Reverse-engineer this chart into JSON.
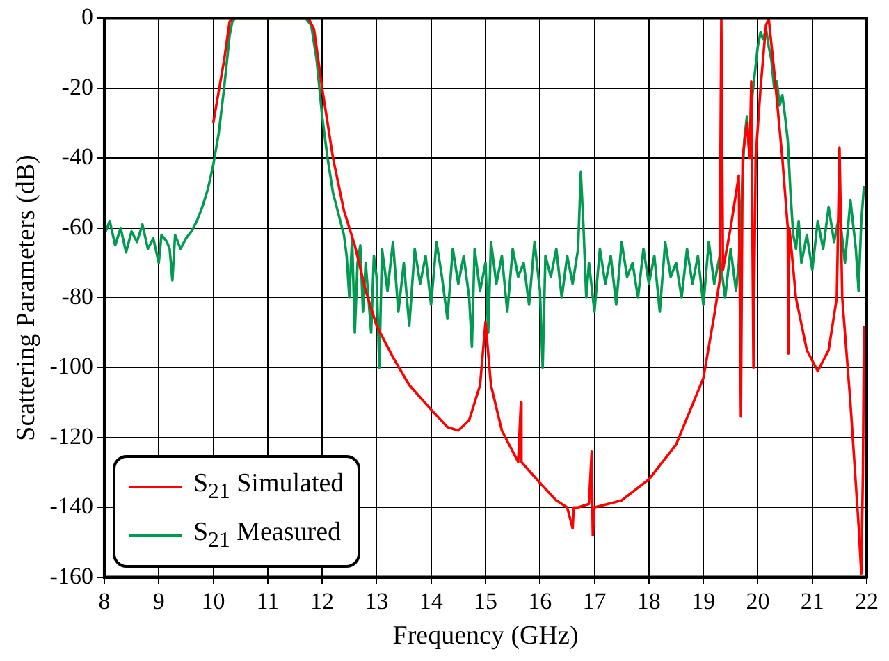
{
  "chart_data": {
    "type": "line",
    "xlabel": "Frequency (GHz)",
    "ylabel": "Scattering Parameters (dB)",
    "xlim": [
      8,
      22
    ],
    "xticks": [
      8,
      9,
      10,
      11,
      12,
      13,
      14,
      15,
      16,
      17,
      18,
      19,
      20,
      21,
      22
    ],
    "ylim": [
      -160,
      0
    ],
    "yticks": [
      -160,
      -140,
      -120,
      -100,
      -80,
      -60,
      -40,
      -20,
      0
    ],
    "grid": true,
    "legend": "bottom left",
    "marker": "none",
    "line_style": "solid",
    "series": [
      {
        "name": "S$_{21}$ Simulated",
        "color": "#ff0000",
        "x": [
          10.0,
          10.2,
          10.3,
          10.35,
          11.75,
          11.85,
          12.0,
          12.2,
          12.4,
          12.6,
          12.8,
          13.0,
          13.3,
          13.6,
          14.0,
          14.3,
          14.5,
          14.7,
          14.9,
          15.0,
          15.1,
          15.3,
          15.6,
          15.65,
          15.66,
          16.0,
          16.3,
          16.5,
          16.6,
          16.62,
          16.7,
          16.9,
          16.95,
          16.97,
          17.0,
          17.5,
          18.0,
          18.5,
          19.0,
          19.2,
          19.3,
          19.33,
          19.36,
          19.5,
          19.65,
          19.69,
          19.72,
          19.8,
          19.85,
          19.88,
          19.92,
          19.96,
          20.05,
          20.15,
          20.2,
          20.3,
          20.45,
          20.55,
          20.56,
          20.58,
          20.7,
          20.9,
          21.1,
          21.3,
          21.45,
          21.5,
          21.55,
          21.7,
          21.85,
          21.9,
          21.93,
          21.95
        ],
        "values": [
          -30,
          -12,
          -1,
          0,
          0,
          -3,
          -20,
          -40,
          -55,
          -65,
          -78,
          -88,
          -97,
          -105,
          -112,
          -117,
          -118,
          -115,
          -105,
          -87,
          -105,
          -118,
          -127,
          -110,
          -127,
          -133,
          -138,
          -140,
          -146,
          -140,
          -140,
          -139,
          -124,
          -148,
          -140,
          -138,
          -132,
          -122,
          -103,
          -85,
          -75,
          0,
          -72,
          -60,
          -45,
          -114,
          -40,
          -30,
          -40,
          -18,
          -100,
          -40,
          -20,
          -2,
          0,
          -15,
          -40,
          -60,
          -96,
          -60,
          -80,
          -95,
          -101,
          -95,
          -80,
          -37,
          -80,
          -110,
          -145,
          -159,
          -130,
          -88
        ]
      },
      {
        "name": "S$_{21}$ Measured",
        "color": "#009a50",
        "x": [
          8.0,
          8.1,
          8.2,
          8.3,
          8.4,
          8.5,
          8.6,
          8.7,
          8.8,
          8.9,
          9.0,
          9.05,
          9.15,
          9.2,
          9.25,
          9.3,
          9.4,
          9.5,
          9.6,
          9.7,
          9.8,
          9.9,
          10.0,
          10.1,
          10.2,
          10.3,
          10.35,
          10.4,
          11.0,
          11.7,
          11.8,
          11.9,
          12.0,
          12.1,
          12.2,
          12.3,
          12.4,
          12.45,
          12.5,
          12.55,
          12.6,
          12.65,
          12.7,
          12.75,
          12.8,
          12.9,
          12.95,
          13.0,
          13.05,
          13.1,
          13.2,
          13.3,
          13.4,
          13.5,
          13.6,
          13.7,
          13.8,
          13.9,
          14.0,
          14.1,
          14.2,
          14.3,
          14.4,
          14.5,
          14.6,
          14.7,
          14.75,
          14.8,
          14.9,
          15.0,
          15.05,
          15.1,
          15.2,
          15.3,
          15.4,
          15.5,
          15.6,
          15.7,
          15.8,
          15.9,
          16.0,
          16.05,
          16.1,
          16.2,
          16.3,
          16.4,
          16.5,
          16.6,
          16.7,
          16.75,
          16.8,
          16.85,
          16.9,
          17.0,
          17.1,
          17.2,
          17.3,
          17.4,
          17.5,
          17.6,
          17.7,
          17.8,
          17.9,
          18.0,
          18.1,
          18.2,
          18.3,
          18.4,
          18.5,
          18.6,
          18.7,
          18.8,
          18.9,
          19.0,
          19.1,
          19.2,
          19.3,
          19.4,
          19.5,
          19.6,
          19.65,
          19.7,
          19.75,
          19.8,
          19.85,
          19.9,
          19.95,
          20.0,
          20.05,
          20.1,
          20.15,
          20.2,
          20.25,
          20.3,
          20.35,
          20.4,
          20.45,
          20.5,
          20.55,
          20.6,
          20.65,
          20.7,
          20.75,
          20.8,
          20.9,
          21.0,
          21.1,
          21.2,
          21.3,
          21.4,
          21.5,
          21.6,
          21.7,
          21.8,
          21.85,
          21.9,
          21.95
        ],
        "values": [
          -62,
          -58,
          -65,
          -60,
          -67,
          -61,
          -64,
          -59,
          -66,
          -63,
          -70,
          -62,
          -64,
          -66,
          -75,
          -62,
          -66,
          -63,
          -61,
          -58,
          -54,
          -49,
          -42,
          -33,
          -20,
          -5,
          -1,
          0,
          0,
          0,
          -2,
          -12,
          -28,
          -40,
          -50,
          -56,
          -62,
          -68,
          -80,
          -63,
          -90,
          -70,
          -65,
          -84,
          -70,
          -90,
          -68,
          -74,
          -100,
          -66,
          -78,
          -64,
          -84,
          -70,
          -88,
          -66,
          -76,
          -68,
          -82,
          -64,
          -74,
          -86,
          -66,
          -76,
          -68,
          -80,
          -94,
          -66,
          -78,
          -70,
          -90,
          -64,
          -76,
          -68,
          -84,
          -66,
          -74,
          -70,
          -82,
          -64,
          -78,
          -100,
          -68,
          -74,
          -66,
          -80,
          -68,
          -76,
          -66,
          -44,
          -60,
          -80,
          -70,
          -84,
          -66,
          -76,
          -68,
          -82,
          -64,
          -74,
          -70,
          -80,
          -66,
          -76,
          -68,
          -84,
          -64,
          -74,
          -70,
          -80,
          -66,
          -76,
          -68,
          -82,
          -64,
          -76,
          -68,
          -80,
          -66,
          -78,
          -70,
          -52,
          -35,
          -28,
          -40,
          -22,
          -15,
          -8,
          -4,
          -6,
          -3,
          -8,
          -12,
          -20,
          -18,
          -25,
          -22,
          -28,
          -35,
          -50,
          -62,
          -66,
          -58,
          -70,
          -62,
          -72,
          -58,
          -66,
          -54,
          -64,
          -56,
          -70,
          -52,
          -66,
          -78,
          -58,
          -48
        ]
      }
    ]
  }
}
